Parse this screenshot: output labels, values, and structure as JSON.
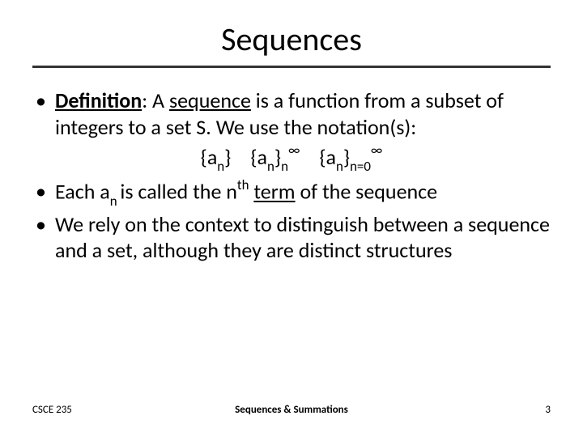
{
  "title": "Sequences",
  "bullets": {
    "b1_label": "Definition",
    "b1_colon": ": A ",
    "b1_seq": "sequence",
    "b1_rest": " is a function from a subset of integers to a set S.  We use the notation(s):",
    "b2_a": "Each a",
    "b2_sub": "n ",
    "b2_b": "is called the n",
    "b2_sup": "th",
    "b2_c": " ",
    "b2_term": "term",
    "b2_d": " of the sequence",
    "b3": "We rely on the context to distinguish between a sequence and a set, although they are distinct structures"
  },
  "notations": {
    "n1_open": "{a",
    "n1_sub": "n",
    "n1_close": "}",
    "n2_open": "{a",
    "n2_sub1": "n",
    "n2_mid": "}",
    "n2_sub2": "n",
    "n2_sup": "∞",
    "n3_open": "{a",
    "n3_sub1": "n",
    "n3_mid": "}",
    "n3_sub2": "n=0",
    "n3_sup": "∞"
  },
  "footer": {
    "left": "CSCE 235",
    "center": "Sequences & Summations",
    "page": "3"
  },
  "colors": {
    "text": "#000000",
    "rule": "#333333",
    "background": "#ffffff"
  }
}
